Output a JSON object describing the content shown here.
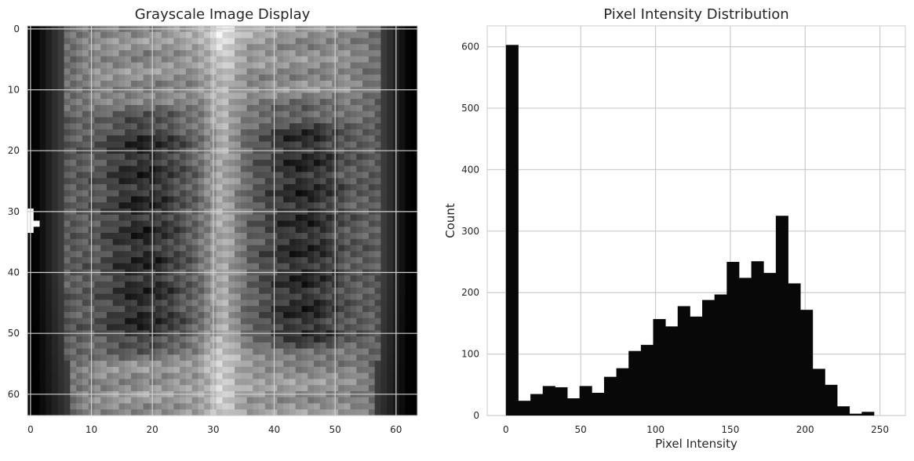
{
  "chart_data": [
    {
      "type": "heatmap",
      "title": "Grayscale Image Display",
      "colormap": "gray",
      "image_size": [
        64,
        64
      ],
      "grid": true,
      "x_ticks": [
        0,
        10,
        20,
        30,
        40,
        50,
        60
      ],
      "y_ticks": [
        0,
        10,
        20,
        30,
        40,
        50,
        60
      ],
      "xlim": [
        -0.5,
        63.5
      ],
      "ylim": [
        63.5,
        -0.5
      ]
    },
    {
      "type": "bar",
      "title": "Pixel Intensity Distribution",
      "xlabel": "Pixel Intensity",
      "ylabel": "Count",
      "bin_width": 8.2,
      "bin_start": 0,
      "values": [
        603,
        24,
        35,
        48,
        46,
        28,
        48,
        37,
        63,
        77,
        105,
        115,
        157,
        145,
        178,
        161,
        188,
        197,
        250,
        224,
        251,
        232,
        325,
        215,
        172,
        76,
        50,
        15,
        3,
        6
      ],
      "x_ticks": [
        0,
        50,
        100,
        150,
        200,
        250
      ],
      "y_ticks": [
        0,
        100,
        200,
        300,
        400,
        500,
        600
      ],
      "xlim": [
        -12.5,
        267
      ],
      "ylim": [
        0,
        634
      ],
      "grid": true,
      "bar_color": "#080808"
    }
  ]
}
